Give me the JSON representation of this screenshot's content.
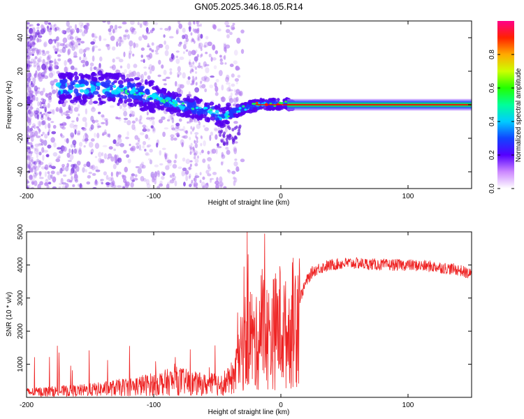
{
  "title": "GN05.2025.346.18.05.R14",
  "chart_data": [
    {
      "type": "heatmap",
      "xlabel": "Height of straight line (km)",
      "ylabel": "Frequency (Hz)",
      "xlim": [
        -200,
        150
      ],
      "ylim": [
        -50,
        50
      ],
      "xticks": [
        -200,
        -100,
        0,
        100
      ],
      "yticks": [
        -40,
        -20,
        0,
        20,
        40
      ],
      "colorbar": {
        "label": "Normalized spectral amplitude",
        "range": [
          0.0,
          1.0
        ],
        "ticks": [
          "0.0",
          "0.2",
          "0.4",
          "0.6",
          "0.8"
        ]
      },
      "ridge": [
        {
          "x": -160,
          "y": 10
        },
        {
          "x": -140,
          "y": 10
        },
        {
          "x": -120,
          "y": 8
        },
        {
          "x": -100,
          "y": 5
        },
        {
          "x": -80,
          "y": 0
        },
        {
          "x": -60,
          "y": -3
        },
        {
          "x": -45,
          "y": -7
        },
        {
          "x": -35,
          "y": -4
        },
        {
          "x": -25,
          "y": -1
        },
        {
          "x": -15,
          "y": 0
        },
        {
          "x": 0,
          "y": 1
        },
        {
          "x": 10,
          "y": 0
        },
        {
          "x": 150,
          "y": 0
        }
      ]
    },
    {
      "type": "line",
      "xlabel": "Height of straight line (km)",
      "ylabel": "SNR (10 * v/v)",
      "xlim": [
        -200,
        150
      ],
      "ylim": [
        0,
        5000
      ],
      "xticks": [
        -200,
        -100,
        0,
        100
      ],
      "yticks": [
        1000,
        2000,
        3000,
        4000,
        5000
      ],
      "series": [
        {
          "name": "SNR",
          "color": "#ee2222",
          "x": [
            -200,
            -180,
            -160,
            -140,
            -120,
            -100,
            -90,
            -80,
            -70,
            -60,
            -50,
            -40,
            -35,
            -30,
            -25,
            -20,
            -15,
            -10,
            -5,
            0,
            5,
            10,
            15,
            20,
            25,
            30,
            40,
            50,
            60,
            80,
            100,
            120,
            140,
            150
          ],
          "y": [
            150,
            180,
            200,
            250,
            320,
            400,
            450,
            500,
            420,
            380,
            400,
            500,
            800,
            1500,
            2000,
            1500,
            2200,
            1800,
            2000,
            2200,
            1800,
            2300,
            3000,
            3500,
            3800,
            3900,
            4000,
            4050,
            4050,
            4000,
            4000,
            3950,
            3850,
            3700
          ]
        }
      ]
    }
  ]
}
